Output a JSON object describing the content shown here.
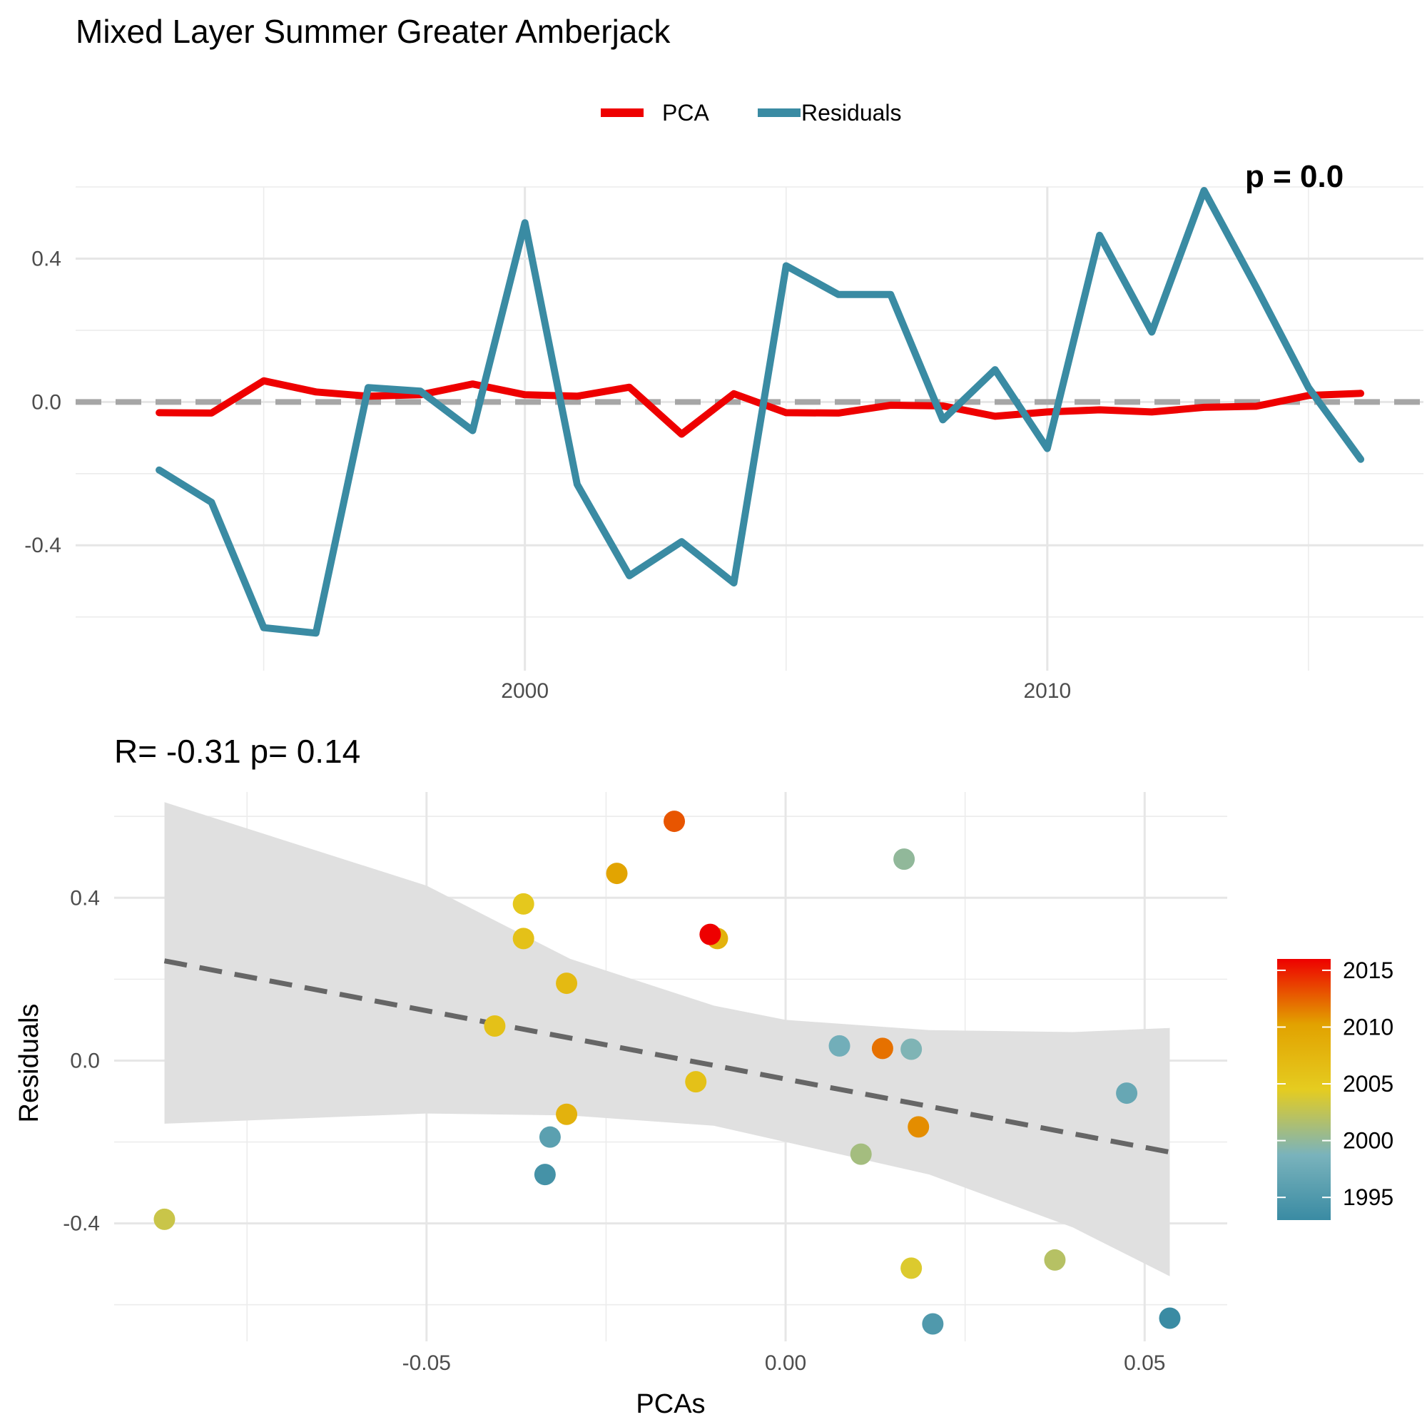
{
  "title": "Mixed Layer Summer Greater Amberjack",
  "colors": {
    "pca": "#ee0000",
    "residuals": "#3a8ba3",
    "zero_line": "#a6a6a6",
    "fit_line": "#666666",
    "ribbon": "#e0e0e0"
  },
  "chart_data": [
    {
      "type": "line",
      "title": "",
      "subtitle_clipped": "p = 0.0",
      "xlabel": "",
      "ylabel": "",
      "xlim": [
        1991.4,
        2017.2
      ],
      "ylim": [
        -0.75,
        0.6
      ],
      "x_major_ticks": [
        2000,
        2010
      ],
      "x_major_labels": [
        "2000",
        "2010"
      ],
      "x_minor_ticks": [
        1995,
        2005,
        2015
      ],
      "y_major_ticks": [
        -0.4,
        0.0,
        0.4
      ],
      "y_major_labels": [
        "-0.4",
        "0.0",
        "0.4"
      ],
      "y_minor_ticks": [
        -0.6,
        -0.2,
        0.2,
        0.6
      ],
      "grid": true,
      "legend": {
        "position": "top",
        "entries": [
          "PCA",
          "Residuals"
        ]
      },
      "hline": 0,
      "x": [
        1993,
        1994,
        1995,
        1996,
        1997,
        1998,
        1999,
        2000,
        2001,
        2002,
        2003,
        2004,
        2005,
        2006,
        2007,
        2008,
        2009,
        2010,
        2011,
        2012,
        2013,
        2014,
        2015,
        2016
      ],
      "series": [
        {
          "name": "PCA",
          "color": "#ee0000",
          "values": [
            -0.03,
            -0.031,
            0.059,
            0.028,
            0.016,
            0.02,
            0.05,
            0.02,
            0.016,
            0.041,
            -0.09,
            0.023,
            -0.03,
            -0.031,
            -0.009,
            -0.011,
            -0.04,
            -0.028,
            -0.022,
            -0.028,
            -0.015,
            -0.012,
            0.018,
            0.024
          ]
        },
        {
          "name": "Residuals",
          "color": "#3a8ba3",
          "values": [
            -0.19,
            -0.28,
            -0.63,
            -0.645,
            0.04,
            0.03,
            -0.08,
            0.5,
            -0.23,
            -0.485,
            -0.39,
            -0.505,
            0.38,
            0.3,
            0.3,
            -0.05,
            0.09,
            -0.13,
            0.465,
            0.195,
            0.59,
            0.32,
            0.04,
            -0.16
          ]
        }
      ]
    },
    {
      "type": "scatter",
      "title": "R= -0.31  p= 0.14",
      "xlabel": "PCAs",
      "ylabel": "Residuals",
      "xlim": [
        -0.0935,
        0.0615
      ],
      "ylim": [
        -0.69,
        0.66
      ],
      "x_major_ticks": [
        -0.05,
        0.0,
        0.05
      ],
      "x_major_labels": [
        "-0.05",
        "0.00",
        "0.05"
      ],
      "x_minor_ticks": [
        -0.075,
        -0.025,
        0.025
      ],
      "y_major_ticks": [
        -0.4,
        0.0,
        0.4
      ],
      "y_major_labels": [
        "-0.4",
        "0.0",
        "0.4"
      ],
      "y_minor_ticks": [
        -0.6,
        -0.2,
        0.2,
        0.6
      ],
      "grid": true,
      "color_scale": {
        "title": "",
        "range": [
          1993,
          2016
        ],
        "ticks": [
          1995,
          2000,
          2005,
          2010,
          2015
        ],
        "tick_labels": [
          "1995",
          "2000",
          "2005",
          "2010",
          "2015"
        ],
        "stops": [
          "#3a8ba3",
          "#7ab3bc",
          "#e5cc20",
          "#e2a200",
          "#ee0000"
        ],
        "position": "right"
      },
      "fit": {
        "type": "linear",
        "line": [
          [
            -0.0865,
            0.245
          ],
          [
            0.0535,
            -0.225
          ]
        ],
        "band_upper": [
          [
            -0.0865,
            0.635
          ],
          [
            -0.05,
            0.43
          ],
          [
            -0.03,
            0.25
          ],
          [
            -0.01,
            0.135
          ],
          [
            0.0,
            0.1
          ],
          [
            0.02,
            0.075
          ],
          [
            0.04,
            0.07
          ],
          [
            0.0535,
            0.08
          ]
        ],
        "band_lower": [
          [
            -0.0865,
            -0.155
          ],
          [
            -0.05,
            -0.13
          ],
          [
            -0.03,
            -0.135
          ],
          [
            -0.01,
            -0.16
          ],
          [
            0.0,
            -0.2
          ],
          [
            0.02,
            -0.28
          ],
          [
            0.04,
            -0.41
          ],
          [
            0.0535,
            -0.53
          ]
        ]
      },
      "points": [
        {
          "x": 0.0535,
          "y": -0.633,
          "year": 1993
        },
        {
          "x": -0.0335,
          "y": -0.28,
          "year": 1994
        },
        {
          "x": 0.0205,
          "y": -0.647,
          "year": 1995
        },
        {
          "x": -0.0328,
          "y": -0.188,
          "year": 1996
        },
        {
          "x": 0.0475,
          "y": -0.08,
          "year": 1997
        },
        {
          "x": 0.0075,
          "y": 0.036,
          "year": 1998
        },
        {
          "x": 0.0175,
          "y": 0.028,
          "year": 1999
        },
        {
          "x": 0.0165,
          "y": 0.495,
          "year": 2000
        },
        {
          "x": 0.0105,
          "y": -0.23,
          "year": 2001
        },
        {
          "x": 0.0375,
          "y": -0.49,
          "year": 2002
        },
        {
          "x": -0.0865,
          "y": -0.39,
          "year": 2003
        },
        {
          "x": 0.0175,
          "y": -0.51,
          "year": 2004
        },
        {
          "x": -0.0365,
          "y": 0.385,
          "year": 2005
        },
        {
          "x": -0.0365,
          "y": 0.3,
          "year": 2006
        },
        {
          "x": -0.0405,
          "y": 0.085,
          "year": 2006
        },
        {
          "x": -0.0125,
          "y": -0.052,
          "year": 2006
        },
        {
          "x": -0.0305,
          "y": 0.19,
          "year": 2007
        },
        {
          "x": -0.0305,
          "y": -0.132,
          "year": 2008
        },
        {
          "x": -0.0095,
          "y": 0.3,
          "year": 2008
        },
        {
          "x": -0.0235,
          "y": 0.46,
          "year": 2010
        },
        {
          "x": 0.0185,
          "y": -0.163,
          "year": 2011
        },
        {
          "x": 0.0135,
          "y": 0.03,
          "year": 2012
        },
        {
          "x": -0.0155,
          "y": 0.588,
          "year": 2013
        },
        {
          "x": -0.0105,
          "y": 0.31,
          "year": 2016
        }
      ]
    }
  ]
}
